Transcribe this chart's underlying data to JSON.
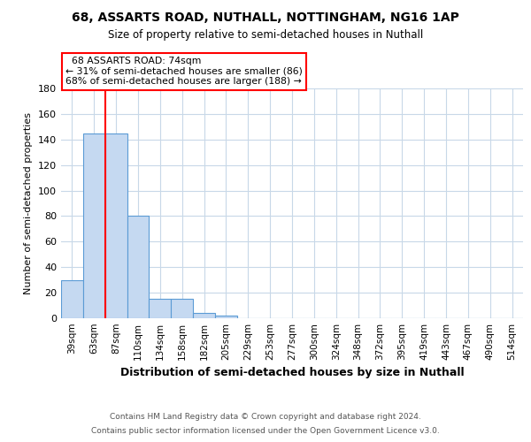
{
  "title1": "68, ASSARTS ROAD, NUTHALL, NOTTINGHAM, NG16 1AP",
  "title2": "Size of property relative to semi-detached houses in Nuthall",
  "xlabel": "Distribution of semi-detached houses by size in Nuthall",
  "ylabel": "Number of semi-detached properties",
  "footer1": "Contains HM Land Registry data © Crown copyright and database right 2024.",
  "footer2": "Contains public sector information licensed under the Open Government Licence v3.0.",
  "bin_labels": [
    "39sqm",
    "63sqm",
    "87sqm",
    "110sqm",
    "134sqm",
    "158sqm",
    "182sqm",
    "205sqm",
    "229sqm",
    "253sqm",
    "277sqm",
    "300sqm",
    "324sqm",
    "348sqm",
    "372sqm",
    "395sqm",
    "419sqm",
    "443sqm",
    "467sqm",
    "490sqm",
    "514sqm"
  ],
  "bar_values": [
    30,
    145,
    145,
    80,
    15,
    15,
    4,
    2,
    0,
    0,
    0,
    0,
    0,
    0,
    0,
    0,
    0,
    0,
    0,
    0,
    0
  ],
  "bar_color": "#c5d9f1",
  "bar_edgecolor": "#5b9bd5",
  "property_size": "74sqm",
  "pct_smaller": 31,
  "n_smaller": 86,
  "pct_larger": 68,
  "n_larger": 188,
  "red_line_color": "#ff0000",
  "ylim": [
    0,
    180
  ],
  "yticks": [
    0,
    20,
    40,
    60,
    80,
    100,
    120,
    140,
    160,
    180
  ],
  "grid_color": "#c8d8e8",
  "background_color": "#ffffff",
  "plot_bg_color": "#ffffff"
}
